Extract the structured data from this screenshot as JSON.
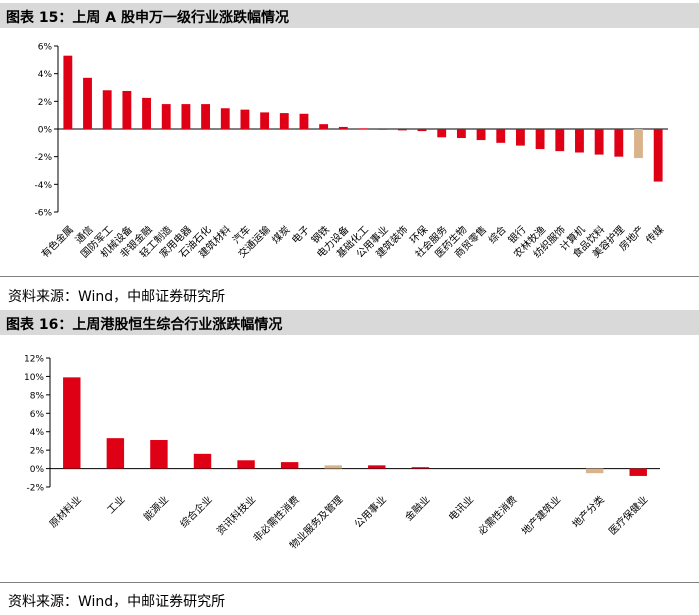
{
  "figure15": {
    "header": "图表 15：上周 A 股申万一级行业涨跌幅情况",
    "source": "资料来源：Wind，中邮证券研究所"
  },
  "figure16": {
    "header": "图表 16：上周港股恒生综合行业涨跌幅情况",
    "source": "资料来源：Wind，中邮证券研究所"
  },
  "colors": {
    "up": "#e00015",
    "down": "#e00015",
    "highlight": "#d9b38c"
  },
  "chart_data": [
    {
      "type": "bar",
      "categories": [
        "有色金属",
        "通信",
        "国防军工",
        "机械设备",
        "非银金融",
        "轻工制造",
        "家用电器",
        "石油石化",
        "建筑材料",
        "汽车",
        "交通运输",
        "煤炭",
        "电子",
        "钢铁",
        "电力设备",
        "基础化工",
        "公用事业",
        "建筑装饰",
        "环保",
        "社会服务",
        "医药生物",
        "商贸零售",
        "综合",
        "银行",
        "农林牧渔",
        "纺织服饰",
        "计算机",
        "食品饮料",
        "美容护理",
        "房地产",
        "传媒"
      ],
      "values": [
        5.3,
        3.7,
        2.8,
        2.75,
        2.25,
        1.8,
        1.8,
        1.8,
        1.5,
        1.4,
        1.2,
        1.15,
        1.1,
        0.35,
        0.15,
        0.05,
        -0.05,
        -0.1,
        -0.15,
        -0.6,
        -0.65,
        -0.8,
        -1.0,
        -1.2,
        -1.45,
        -1.6,
        -1.7,
        -1.85,
        -2.0,
        -2.1,
        -3.8
      ],
      "highlight_index": 29,
      "yticks": [
        "6%",
        "4%",
        "2%",
        "0%",
        "-2%",
        "-4%",
        "-6%"
      ],
      "ylim": [
        -6,
        6
      ],
      "grid": false
    },
    {
      "type": "bar",
      "categories": [
        "原材料业",
        "工业",
        "能源业",
        "综合企业",
        "资讯科技业",
        "非必需性消费",
        "物业服务及管理",
        "公用事业",
        "金融业",
        "电讯业",
        "必需性消费",
        "地产建筑业",
        "地产分类",
        "医疗保健业"
      ],
      "values": [
        9.9,
        3.3,
        3.1,
        1.6,
        0.9,
        0.7,
        0.35,
        0.35,
        0.15,
        0.0,
        0.0,
        0.0,
        -0.5,
        -0.8
      ],
      "highlight_indices": [
        6,
        12
      ],
      "yticks": [
        "12%",
        "10%",
        "8%",
        "6%",
        "4%",
        "2%",
        "0%",
        "-2%"
      ],
      "ylim": [
        -2,
        12
      ],
      "grid": false
    }
  ]
}
